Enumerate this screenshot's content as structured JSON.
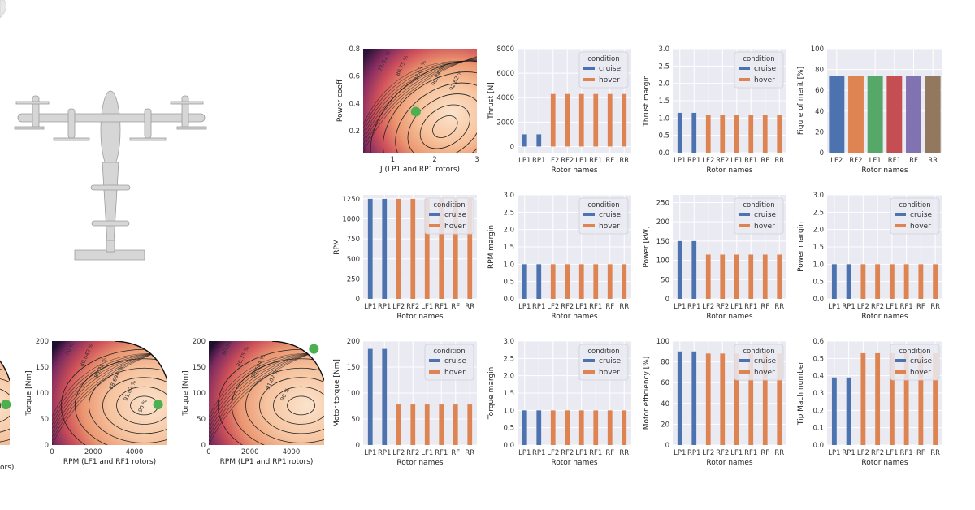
{
  "colors": {
    "cruise": "#4c72b0",
    "hover": "#dd8452",
    "panel_bg": "#eaeaf2",
    "grid": "#ffffff",
    "design_point": "#4caf50",
    "fom_palette": [
      "#4c72b0",
      "#dd8452",
      "#55a868",
      "#c44e52",
      "#8172b2",
      "#937860"
    ]
  },
  "aircraft_image": {
    "icon": "tiltrotor-aircraft-icon"
  },
  "legend": {
    "title": "condition",
    "entries": [
      "cruise",
      "hover"
    ]
  },
  "chart_data": [
    {
      "id": "power-coeff-map",
      "type": "heatmap",
      "xlabel": "J (LP1 and RP1 rotors)",
      "ylabel": "Power coeff",
      "xlim": [
        0.3,
        3
      ],
      "ylim": [
        0.04,
        0.8
      ],
      "xticks": [
        "1",
        "2",
        "3"
      ],
      "yticks": [
        "0.2",
        "0.4",
        "0.6",
        "0.8"
      ],
      "contour_labels": [
        "71.61 %",
        "80.75 %",
        "87.63 %",
        "90.84 %",
        "92.62 %"
      ],
      "design_point": {
        "x": 1.55,
        "y": 0.34
      }
    },
    {
      "id": "thrust",
      "type": "bar",
      "categories": [
        "LP1",
        "RP1",
        "LF2",
        "RF2",
        "LF1",
        "RF1",
        "RF",
        "RR"
      ],
      "xlabel": "Rotor names",
      "ylabel": "Thrust [N]",
      "ylim": [
        -500,
        8000
      ],
      "yticks": [
        "0",
        "2000",
        "4000",
        "6000",
        "8000"
      ],
      "series": [
        {
          "name": "cruise",
          "values": [
            1000,
            1000,
            null,
            null,
            null,
            null,
            null,
            null
          ]
        },
        {
          "name": "hover",
          "values": [
            null,
            null,
            4300,
            4300,
            4300,
            4300,
            4300,
            4300
          ]
        }
      ],
      "legend": "top-right"
    },
    {
      "id": "thrust-margin",
      "type": "bar",
      "categories": [
        "LP1",
        "RP1",
        "LF2",
        "RF2",
        "LF1",
        "RF1",
        "RF",
        "RR"
      ],
      "xlabel": "Rotor names",
      "ylabel": "Thrust margin",
      "ylim": [
        0,
        3
      ],
      "yticks": [
        "0.0",
        "0.5",
        "1.0",
        "1.5",
        "2.0",
        "2.5",
        "3.0"
      ],
      "series": [
        {
          "name": "cruise",
          "values": [
            1.15,
            1.15,
            null,
            null,
            null,
            null,
            null,
            null
          ]
        },
        {
          "name": "hover",
          "values": [
            null,
            null,
            1.08,
            1.08,
            1.08,
            1.08,
            1.08,
            1.08
          ]
        }
      ],
      "legend": "top-right"
    },
    {
      "id": "figure-of-merit",
      "type": "bar",
      "categories": [
        "LF2",
        "RF2",
        "LF1",
        "RF1",
        "RF",
        "RR"
      ],
      "xlabel": "Rotor names",
      "ylabel": "Figure of merit [%]",
      "ylim": [
        0,
        100
      ],
      "yticks": [
        "0",
        "20",
        "40",
        "60",
        "80",
        "100"
      ],
      "values": [
        74,
        74,
        74,
        74,
        74,
        74
      ]
    },
    {
      "id": "rpm",
      "type": "bar",
      "categories": [
        "LP1",
        "RP1",
        "LF2",
        "RF2",
        "LF1",
        "RF1",
        "RF",
        "RR"
      ],
      "xlabel": "Rotor names",
      "ylabel": "RPM",
      "ylim": [
        0,
        1300
      ],
      "yticks": [
        "0",
        "250",
        "500",
        "750",
        "1000",
        "1250"
      ],
      "series": [
        {
          "name": "cruise",
          "values": [
            1250,
            1250,
            null,
            null,
            null,
            null,
            null,
            null
          ]
        },
        {
          "name": "hover",
          "values": [
            null,
            null,
            1250,
            1250,
            1250,
            1250,
            1250,
            1250
          ]
        }
      ],
      "legend": "top-right"
    },
    {
      "id": "rpm-margin",
      "type": "bar",
      "categories": [
        "LP1",
        "RP1",
        "LF2",
        "RF2",
        "LF1",
        "RF1",
        "RF",
        "RR"
      ],
      "xlabel": "Rotor names",
      "ylabel": "RPM margin",
      "ylim": [
        0,
        3
      ],
      "yticks": [
        "0.0",
        "0.5",
        "1.0",
        "1.5",
        "2.0",
        "2.5",
        "3.0"
      ],
      "series": [
        {
          "name": "cruise",
          "values": [
            1.0,
            1.0,
            null,
            null,
            null,
            null,
            null,
            null
          ]
        },
        {
          "name": "hover",
          "values": [
            null,
            null,
            1.0,
            1.0,
            1.0,
            1.0,
            1.0,
            1.0
          ]
        }
      ],
      "legend": "top-right"
    },
    {
      "id": "power",
      "type": "bar",
      "categories": [
        "LP1",
        "RP1",
        "LF2",
        "RF2",
        "LF1",
        "RF1",
        "RF",
        "RR"
      ],
      "xlabel": "Rotor names",
      "ylabel": "Power [kW]",
      "ylim": [
        0,
        270
      ],
      "yticks": [
        "0",
        "50",
        "100",
        "150",
        "200",
        "250"
      ],
      "series": [
        {
          "name": "cruise",
          "values": [
            150,
            150,
            null,
            null,
            null,
            null,
            null,
            null
          ]
        },
        {
          "name": "hover",
          "values": [
            null,
            null,
            115,
            115,
            115,
            115,
            115,
            115
          ]
        }
      ],
      "legend": "top-right"
    },
    {
      "id": "power-margin",
      "type": "bar",
      "categories": [
        "LP1",
        "RP1",
        "LF2",
        "RF2",
        "LF1",
        "RF1",
        "RF",
        "RR"
      ],
      "xlabel": "Rotor names",
      "ylabel": "Power margin",
      "ylim": [
        0,
        3
      ],
      "yticks": [
        "0.0",
        "0.5",
        "1.0",
        "1.5",
        "2.0",
        "2.5",
        "3.0"
      ],
      "series": [
        {
          "name": "cruise",
          "values": [
            1.0,
            1.0,
            null,
            null,
            null,
            null,
            null,
            null
          ]
        },
        {
          "name": "hover",
          "values": [
            null,
            null,
            1.0,
            1.0,
            1.0,
            1.0,
            1.0,
            1.0
          ]
        }
      ],
      "legend": "top-right"
    },
    {
      "id": "torque-map-partial",
      "type": "heatmap",
      "xlabel": "",
      "ylabel": "",
      "xlim": [
        0,
        6000
      ],
      "ylim": [
        0,
        200
      ],
      "xticks": [],
      "yticks": [],
      "xlabel_fragment": "ors)",
      "contour_labels": [],
      "design_point": {
        "x": 5800,
        "y": 78
      }
    },
    {
      "id": "torque-map-lf1-rf1",
      "type": "heatmap",
      "xlabel": "RPM (LF1 and RF1 rotors)",
      "ylabel": "Torque [Nm]",
      "xlim": [
        0,
        5600
      ],
      "ylim": [
        0,
        200
      ],
      "xticks": [
        "0",
        "2000",
        "4000"
      ],
      "yticks": [
        "0",
        "50",
        "100",
        "150",
        "200"
      ],
      "contour_labels": [
        "70 %",
        "80.642 %",
        "86.75 %",
        "88.694 %",
        "91.02 %",
        "90 %"
      ],
      "design_point": {
        "x": 5150,
        "y": 78
      }
    },
    {
      "id": "torque-map-lp1-rp1",
      "type": "heatmap",
      "xlabel": "RPM (LP1 and RP1 rotors)",
      "ylabel": "Torque [Nm]",
      "xlim": [
        0,
        5600
      ],
      "ylim": [
        0,
        200
      ],
      "xticks": [
        "0",
        "2000",
        "4000"
      ],
      "yticks": [
        "0",
        "50",
        "100",
        "150",
        "200"
      ],
      "contour_labels": [
        "80.642 %",
        "86.75 %",
        "88.694 %",
        "91.02 %",
        "90 %"
      ],
      "design_point": {
        "x": 5100,
        "y": 185
      }
    },
    {
      "id": "motor-torque",
      "type": "bar",
      "categories": [
        "LP1",
        "RP1",
        "LF2",
        "RF2",
        "LF1",
        "RF1",
        "RF",
        "RR"
      ],
      "xlabel": "Rotor names",
      "ylabel": "Motor torque [Nm]",
      "ylim": [
        0,
        200
      ],
      "yticks": [
        "0",
        "50",
        "100",
        "150",
        "200"
      ],
      "series": [
        {
          "name": "cruise",
          "values": [
            185,
            185,
            null,
            null,
            null,
            null,
            null,
            null
          ]
        },
        {
          "name": "hover",
          "values": [
            null,
            null,
            78,
            78,
            78,
            78,
            78,
            78
          ]
        }
      ],
      "legend": "top-right"
    },
    {
      "id": "torque-margin",
      "type": "bar",
      "categories": [
        "LP1",
        "RP1",
        "LF2",
        "RF2",
        "LF1",
        "RF1",
        "RF",
        "RR"
      ],
      "xlabel": "Rotor names",
      "ylabel": "Torque margin",
      "ylim": [
        0,
        3
      ],
      "yticks": [
        "0.0",
        "0.5",
        "1.0",
        "1.5",
        "2.0",
        "2.5",
        "3.0"
      ],
      "series": [
        {
          "name": "cruise",
          "values": [
            1.0,
            1.0,
            null,
            null,
            null,
            null,
            null,
            null
          ]
        },
        {
          "name": "hover",
          "values": [
            null,
            null,
            1.0,
            1.0,
            1.0,
            1.0,
            1.0,
            1.0
          ]
        }
      ],
      "legend": "top-right"
    },
    {
      "id": "motor-efficiency",
      "type": "bar",
      "categories": [
        "LP1",
        "RP1",
        "LF2",
        "RF2",
        "LF1",
        "RF1",
        "RF",
        "RR"
      ],
      "xlabel": "Rotor names",
      "ylabel": "Motor efficiency [%]",
      "ylim": [
        0,
        100
      ],
      "yticks": [
        "0",
        "20",
        "40",
        "60",
        "80",
        "100"
      ],
      "series": [
        {
          "name": "cruise",
          "values": [
            90,
            90,
            null,
            null,
            null,
            null,
            null,
            null
          ]
        },
        {
          "name": "hover",
          "values": [
            null,
            null,
            88,
            88,
            88,
            88,
            88,
            88
          ]
        }
      ],
      "legend": "top-right"
    },
    {
      "id": "tip-mach",
      "type": "bar",
      "categories": [
        "LP1",
        "RP1",
        "LF2",
        "RF2",
        "LF1",
        "RF1",
        "RF",
        "RR"
      ],
      "xlabel": "Rotor names",
      "ylabel": "Tip Mach number",
      "ylim": [
        0,
        0.6
      ],
      "yticks": [
        "0.0",
        "0.1",
        "0.2",
        "0.3",
        "0.4",
        "0.5",
        "0.6"
      ],
      "series": [
        {
          "name": "cruise",
          "values": [
            0.39,
            0.39,
            null,
            null,
            null,
            null,
            null,
            null
          ]
        },
        {
          "name": "hover",
          "values": [
            null,
            null,
            0.53,
            0.53,
            0.53,
            0.53,
            0.53,
            0.53
          ]
        }
      ],
      "legend": "top-right"
    }
  ]
}
